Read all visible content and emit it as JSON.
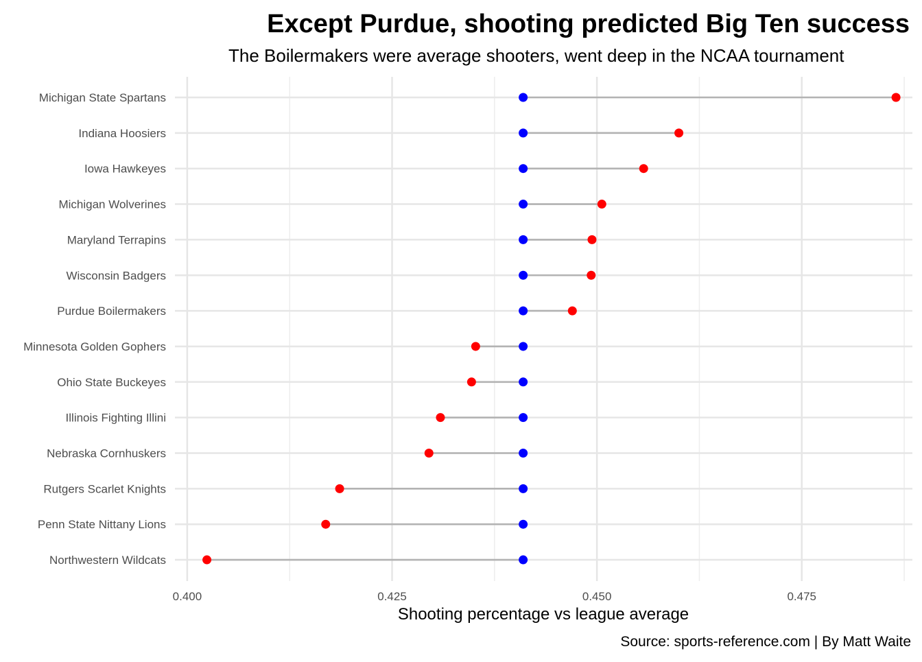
{
  "chart_data": {
    "type": "dumbbell",
    "title": "Except Purdue, shooting predicted Big Ten success",
    "subtitle": "The Boilermakers were average shooters, went deep in the NCAA tournament",
    "xlabel": "Shooting percentage vs league average",
    "ylabel": "",
    "caption": "Source: sports-reference.com | By Matt Waite",
    "xlim": [
      0.3985,
      0.4885
    ],
    "x_ticks": [
      0.4,
      0.425,
      0.45,
      0.475
    ],
    "x_tick_labels": [
      "0.400",
      "0.425",
      "0.450",
      "0.475"
    ],
    "grid": true,
    "league_average_color": "#0000ff",
    "team_color": "#ff0000",
    "segment_color": "#b3b3b3",
    "categories": [
      "Michigan State Spartans",
      "Indiana Hoosiers",
      "Iowa Hawkeyes",
      "Michigan Wolverines",
      "Maryland Terrapins",
      "Wisconsin Badgers",
      "Purdue Boilermakers",
      "Minnesota Golden Gophers",
      "Ohio State Buckeyes",
      "Illinois Fighting Illini",
      "Nebraska Cornhuskers",
      "Rutgers Scarlet Knights",
      "Penn State Nittany Lions",
      "Northwestern Wildcats"
    ],
    "series": [
      {
        "name": "",
        "color": "#0000ff",
        "values": [
          0.441,
          0.441,
          0.441,
          0.441,
          0.441,
          0.441,
          0.441,
          0.441,
          0.441,
          0.441,
          0.441,
          0.441,
          0.441,
          0.441
        ]
      },
      {
        "name": "",
        "color": "#ff0000",
        "values": [
          0.4865,
          0.46,
          0.4557,
          0.4506,
          0.4494,
          0.4493,
          0.447,
          0.4352,
          0.4347,
          0.4309,
          0.4295,
          0.4186,
          0.4169,
          0.4024
        ]
      }
    ]
  }
}
